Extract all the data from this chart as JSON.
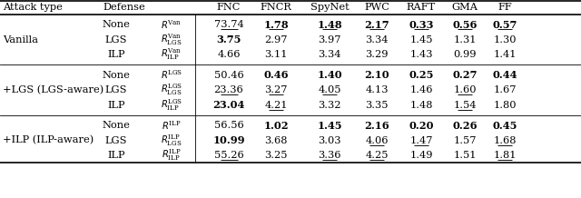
{
  "col_headers": [
    "FNC",
    "FNCR",
    "SpyNet",
    "PWC",
    "RAFT",
    "GMA",
    "FF"
  ],
  "groups": [
    {
      "attack_type": "Vanilla",
      "rows": [
        {
          "defense": "None",
          "sup": "Van",
          "sub": "",
          "values": [
            "73.74",
            "1.78",
            "1.48",
            "2.17",
            "0.33",
            "0.56",
            "0.57"
          ],
          "bold": [
            false,
            true,
            true,
            true,
            true,
            true,
            true
          ],
          "underline": [
            true,
            true,
            true,
            true,
            true,
            true,
            true
          ]
        },
        {
          "defense": "LGS",
          "sup": "Van",
          "sub": "LGS",
          "values": [
            "3.75",
            "2.97",
            "3.97",
            "3.34",
            "1.45",
            "1.31",
            "1.30"
          ],
          "bold": [
            true,
            false,
            false,
            false,
            false,
            false,
            false
          ],
          "underline": [
            false,
            false,
            false,
            false,
            false,
            false,
            false
          ]
        },
        {
          "defense": "ILP",
          "sup": "Van",
          "sub": "ILP",
          "values": [
            "4.66",
            "3.11",
            "3.34",
            "3.29",
            "1.43",
            "0.99",
            "1.41"
          ],
          "bold": [
            false,
            false,
            false,
            false,
            false,
            false,
            false
          ],
          "underline": [
            false,
            false,
            false,
            false,
            false,
            false,
            false
          ]
        }
      ]
    },
    {
      "attack_type": "+LGS (LGS-aware)",
      "rows": [
        {
          "defense": "None",
          "sup": "LGS",
          "sub": "",
          "values": [
            "50.46",
            "0.46",
            "1.40",
            "2.10",
            "0.25",
            "0.27",
            "0.44"
          ],
          "bold": [
            false,
            true,
            true,
            true,
            true,
            true,
            true
          ],
          "underline": [
            false,
            false,
            false,
            false,
            false,
            false,
            false
          ]
        },
        {
          "defense": "LGS",
          "sup": "LGS",
          "sub": "LGS",
          "values": [
            "23.36",
            "3.27",
            "4.05",
            "4.13",
            "1.46",
            "1.60",
            "1.67"
          ],
          "bold": [
            false,
            false,
            false,
            false,
            false,
            false,
            false
          ],
          "underline": [
            true,
            true,
            true,
            false,
            false,
            true,
            false
          ]
        },
        {
          "defense": "ILP",
          "sup": "LGS",
          "sub": "ILP",
          "values": [
            "23.04",
            "4.21",
            "3.32",
            "3.35",
            "1.48",
            "1.54",
            "1.80"
          ],
          "bold": [
            true,
            false,
            false,
            false,
            false,
            false,
            false
          ],
          "underline": [
            false,
            true,
            false,
            false,
            false,
            true,
            false
          ]
        }
      ]
    },
    {
      "attack_type": "+ILP (ILP-aware)",
      "rows": [
        {
          "defense": "None",
          "sup": "ILP",
          "sub": "",
          "values": [
            "56.56",
            "1.02",
            "1.45",
            "2.16",
            "0.20",
            "0.26",
            "0.45"
          ],
          "bold": [
            false,
            true,
            true,
            true,
            true,
            true,
            true
          ],
          "underline": [
            false,
            false,
            false,
            false,
            false,
            false,
            false
          ]
        },
        {
          "defense": "LGS",
          "sup": "ILP",
          "sub": "LGS",
          "values": [
            "10.99",
            "3.68",
            "3.03",
            "4.06",
            "1.47",
            "1.57",
            "1.68"
          ],
          "bold": [
            true,
            false,
            false,
            false,
            false,
            false,
            false
          ],
          "underline": [
            false,
            false,
            false,
            true,
            true,
            false,
            true
          ]
        },
        {
          "defense": "ILP",
          "sup": "ILP",
          "sub": "ILP",
          "values": [
            "55.26",
            "3.25",
            "3.36",
            "4.25",
            "1.49",
            "1.51",
            "1.81"
          ],
          "bold": [
            false,
            false,
            false,
            false,
            false,
            false,
            false
          ],
          "underline": [
            true,
            false,
            true,
            true,
            false,
            false,
            true
          ]
        }
      ]
    }
  ]
}
